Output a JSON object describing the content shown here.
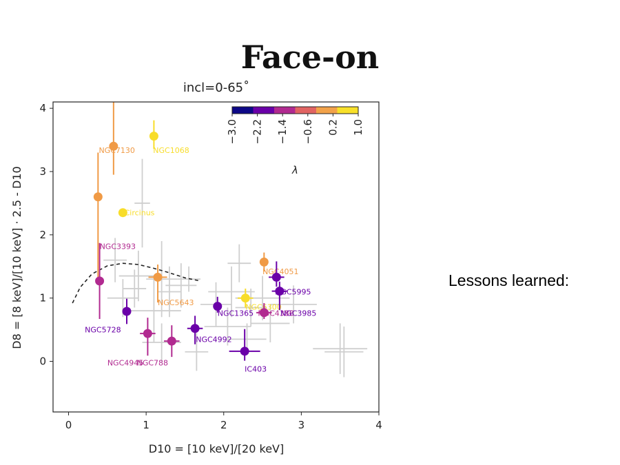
{
  "slide": {
    "title": "Face-on",
    "side_note": "Lessons learned:"
  },
  "chart_data": {
    "type": "scatter",
    "title": "incl=0-65˚",
    "xlabel": "D10 = [10 keV]/[20 keV]",
    "ylabel": "D8 = [8 keV]/[10 keV] · 2.5 - D10",
    "xlim": [
      -0.2,
      4.0
    ],
    "ylim": [
      -0.8,
      4.1
    ],
    "xticks": [
      0,
      1,
      2,
      3,
      4
    ],
    "yticks": [
      0,
      1,
      2,
      3,
      4
    ],
    "grid": false,
    "colorbar": {
      "label": "λ",
      "ticks": [
        "−3.0",
        "−2.2",
        "−1.4",
        "−0.6",
        "0.2",
        "1.0"
      ],
      "colors": [
        "#0d0887",
        "#6a00a8",
        "#b12a90",
        "#e16462",
        "#f2a24a",
        "#f8e02a"
      ],
      "placement": "top-right"
    },
    "curve": {
      "style": "dashed",
      "x": [
        0.05,
        0.15,
        0.3,
        0.5,
        0.7,
        0.9,
        1.1,
        1.3,
        1.5,
        1.7
      ],
      "y": [
        0.92,
        1.17,
        1.38,
        1.51,
        1.55,
        1.53,
        1.47,
        1.4,
        1.32,
        1.27
      ]
    },
    "background_points": [
      {
        "x": 0.6,
        "y": 1.6,
        "xerr": 0.15,
        "yerr": 0.35
      },
      {
        "x": 0.9,
        "y": 1.35,
        "xerr": 0.25,
        "yerr": 0.4
      },
      {
        "x": 0.95,
        "y": 2.5,
        "xerr": 0.1,
        "yerr": 0.7
      },
      {
        "x": 1.2,
        "y": 1.3,
        "xerr": 0.2,
        "yerr": 0.6
      },
      {
        "x": 1.3,
        "y": 1.1,
        "xerr": 0.15,
        "yerr": 0.4
      },
      {
        "x": 1.45,
        "y": 1.2,
        "xerr": 0.2,
        "yerr": 0.35
      },
      {
        "x": 1.1,
        "y": 0.8,
        "xerr": 0.35,
        "yerr": 0.5
      },
      {
        "x": 0.7,
        "y": 1.0,
        "xerr": 0.2,
        "yerr": 0.3
      },
      {
        "x": 1.2,
        "y": 0.3,
        "xerr": 0.25,
        "yerr": 0.3
      },
      {
        "x": 1.65,
        "y": 0.15,
        "xerr": 0.15,
        "yerr": 0.3
      },
      {
        "x": 1.9,
        "y": 0.9,
        "xerr": 0.2,
        "yerr": 0.35
      },
      {
        "x": 2.1,
        "y": 1.1,
        "xerr": 0.3,
        "yerr": 0.4
      },
      {
        "x": 2.2,
        "y": 1.55,
        "xerr": 0.15,
        "yerr": 0.3
      },
      {
        "x": 2.05,
        "y": 0.55,
        "xerr": 0.3,
        "yerr": 0.3
      },
      {
        "x": 2.5,
        "y": 1.0,
        "xerr": 0.35,
        "yerr": 0.35
      },
      {
        "x": 2.6,
        "y": 0.6,
        "xerr": 0.25,
        "yerr": 0.3
      },
      {
        "x": 2.35,
        "y": 0.85,
        "xerr": 0.2,
        "yerr": 0.3
      },
      {
        "x": 2.9,
        "y": 0.9,
        "xerr": 0.3,
        "yerr": 0.3
      },
      {
        "x": 2.3,
        "y": 0.35,
        "xerr": 0.25,
        "yerr": 0.25
      },
      {
        "x": 3.5,
        "y": 0.2,
        "xerr": 0.35,
        "yerr": 0.4
      },
      {
        "x": 3.55,
        "y": 0.15,
        "xerr": 0.25,
        "yerr": 0.4
      },
      {
        "x": 0.85,
        "y": 1.15,
        "xerr": 0.15,
        "yerr": 0.3
      },
      {
        "x": 1.55,
        "y": 1.3,
        "xerr": 0.15,
        "yerr": 0.2
      }
    ],
    "points": [
      {
        "label": "NGC7130",
        "x": 0.38,
        "y": 2.6,
        "xerr": 0.0,
        "yerr_lo": 1.3,
        "yerr_hi": 0.7,
        "color": "#f09a45",
        "lx": 0.39,
        "ly": 3.34
      },
      {
        "label": "NGC1068",
        "x": 1.1,
        "y": 3.56,
        "xerr": 0.0,
        "yerr_lo": 0.2,
        "yerr_hi": 0.25,
        "color": "#f8dd2a",
        "lx": 1.09,
        "ly": 3.34
      },
      {
        "label": "",
        "x": 0.58,
        "y": 3.4,
        "xerr": 0.0,
        "yerr_lo": 0.45,
        "yerr_hi": 0.7,
        "color": "#f09a45",
        "lx": null,
        "ly": null
      },
      {
        "label": "Circinus",
        "x": 0.7,
        "y": 2.35,
        "xerr": 0.0,
        "yerr_lo": 0.0,
        "yerr_hi": 0.0,
        "color": "#f8dd2a",
        "lx": 0.72,
        "ly": 2.35
      },
      {
        "label": "NGC3393",
        "x": 0.4,
        "y": 1.27,
        "xerr": 0.0,
        "yerr_lo": 0.6,
        "yerr_hi": 0.6,
        "color": "#b12a90",
        "lx": 0.4,
        "ly": 1.82
      },
      {
        "label": "NGC5728",
        "x": 0.75,
        "y": 0.79,
        "xerr": 0.0,
        "yerr_lo": 0.2,
        "yerr_hi": 0.2,
        "color": "#6a00a8",
        "lx": 0.21,
        "ly": 0.5
      },
      {
        "label": "NGC5643",
        "x": 1.15,
        "y": 1.33,
        "xerr": 0.12,
        "yerr_lo": 0.4,
        "yerr_hi": 0.2,
        "color": "#f09a45",
        "lx": 1.15,
        "ly": 0.93
      },
      {
        "label": "NGC4945",
        "x": 1.02,
        "y": 0.44,
        "xerr": 0.1,
        "yerr_lo": 0.35,
        "yerr_hi": 0.25,
        "color": "#b12a90",
        "lx": 0.5,
        "ly": -0.02
      },
      {
        "label": "NGC788",
        "x": 1.33,
        "y": 0.32,
        "xerr": 0.1,
        "yerr_lo": 0.25,
        "yerr_hi": 0.25,
        "color": "#b12a90",
        "lx": 0.88,
        "ly": -0.02
      },
      {
        "label": "NGC4992",
        "x": 1.63,
        "y": 0.52,
        "xerr": 0.1,
        "yerr_lo": 0.25,
        "yerr_hi": 0.2,
        "color": "#6a00a8",
        "lx": 1.64,
        "ly": 0.35
      },
      {
        "label": "NGC1365",
        "x": 1.92,
        "y": 0.87,
        "xerr": 0.0,
        "yerr_lo": 0.1,
        "yerr_hi": 0.15,
        "color": "#6a00a8",
        "lx": 1.92,
        "ly": 0.76
      },
      {
        "label": "NGC6300",
        "x": 2.28,
        "y": 1.0,
        "xerr": 0.1,
        "yerr_lo": 0.15,
        "yerr_hi": 0.15,
        "color": "#f8dd2a",
        "lx": 2.28,
        "ly": 0.86
      },
      {
        "label": "IC403",
        "x": 2.27,
        "y": 0.16,
        "xerr": 0.2,
        "yerr_lo": 0.15,
        "yerr_hi": 0.35,
        "color": "#6a00a8",
        "lx": 2.27,
        "ly": -0.12
      },
      {
        "label": "NGC4051",
        "x": 2.52,
        "y": 1.57,
        "xerr": 0.0,
        "yerr_lo": 0.15,
        "yerr_hi": 0.15,
        "color": "#f09a45",
        "lx": 2.5,
        "ly": 1.42
      },
      {
        "label": "NGC4388",
        "x": 2.52,
        "y": 0.77,
        "xerr": 0.1,
        "yerr_lo": 0.1,
        "yerr_hi": 0.15,
        "color": "#b12a90",
        "lx": 2.44,
        "ly": 0.76
      },
      {
        "label": "NGC5995",
        "x": 2.68,
        "y": 1.33,
        "xerr": 0.1,
        "yerr_lo": 0.15,
        "yerr_hi": 0.25,
        "color": "#6a00a8",
        "lx": 2.66,
        "ly": 1.1
      },
      {
        "label": "NGC3985",
        "x": 2.72,
        "y": 1.11,
        "xerr": 0.1,
        "yerr_lo": 0.3,
        "yerr_hi": 0.15,
        "color": "#6a00a8",
        "lx": 2.73,
        "ly": 0.76
      }
    ]
  }
}
